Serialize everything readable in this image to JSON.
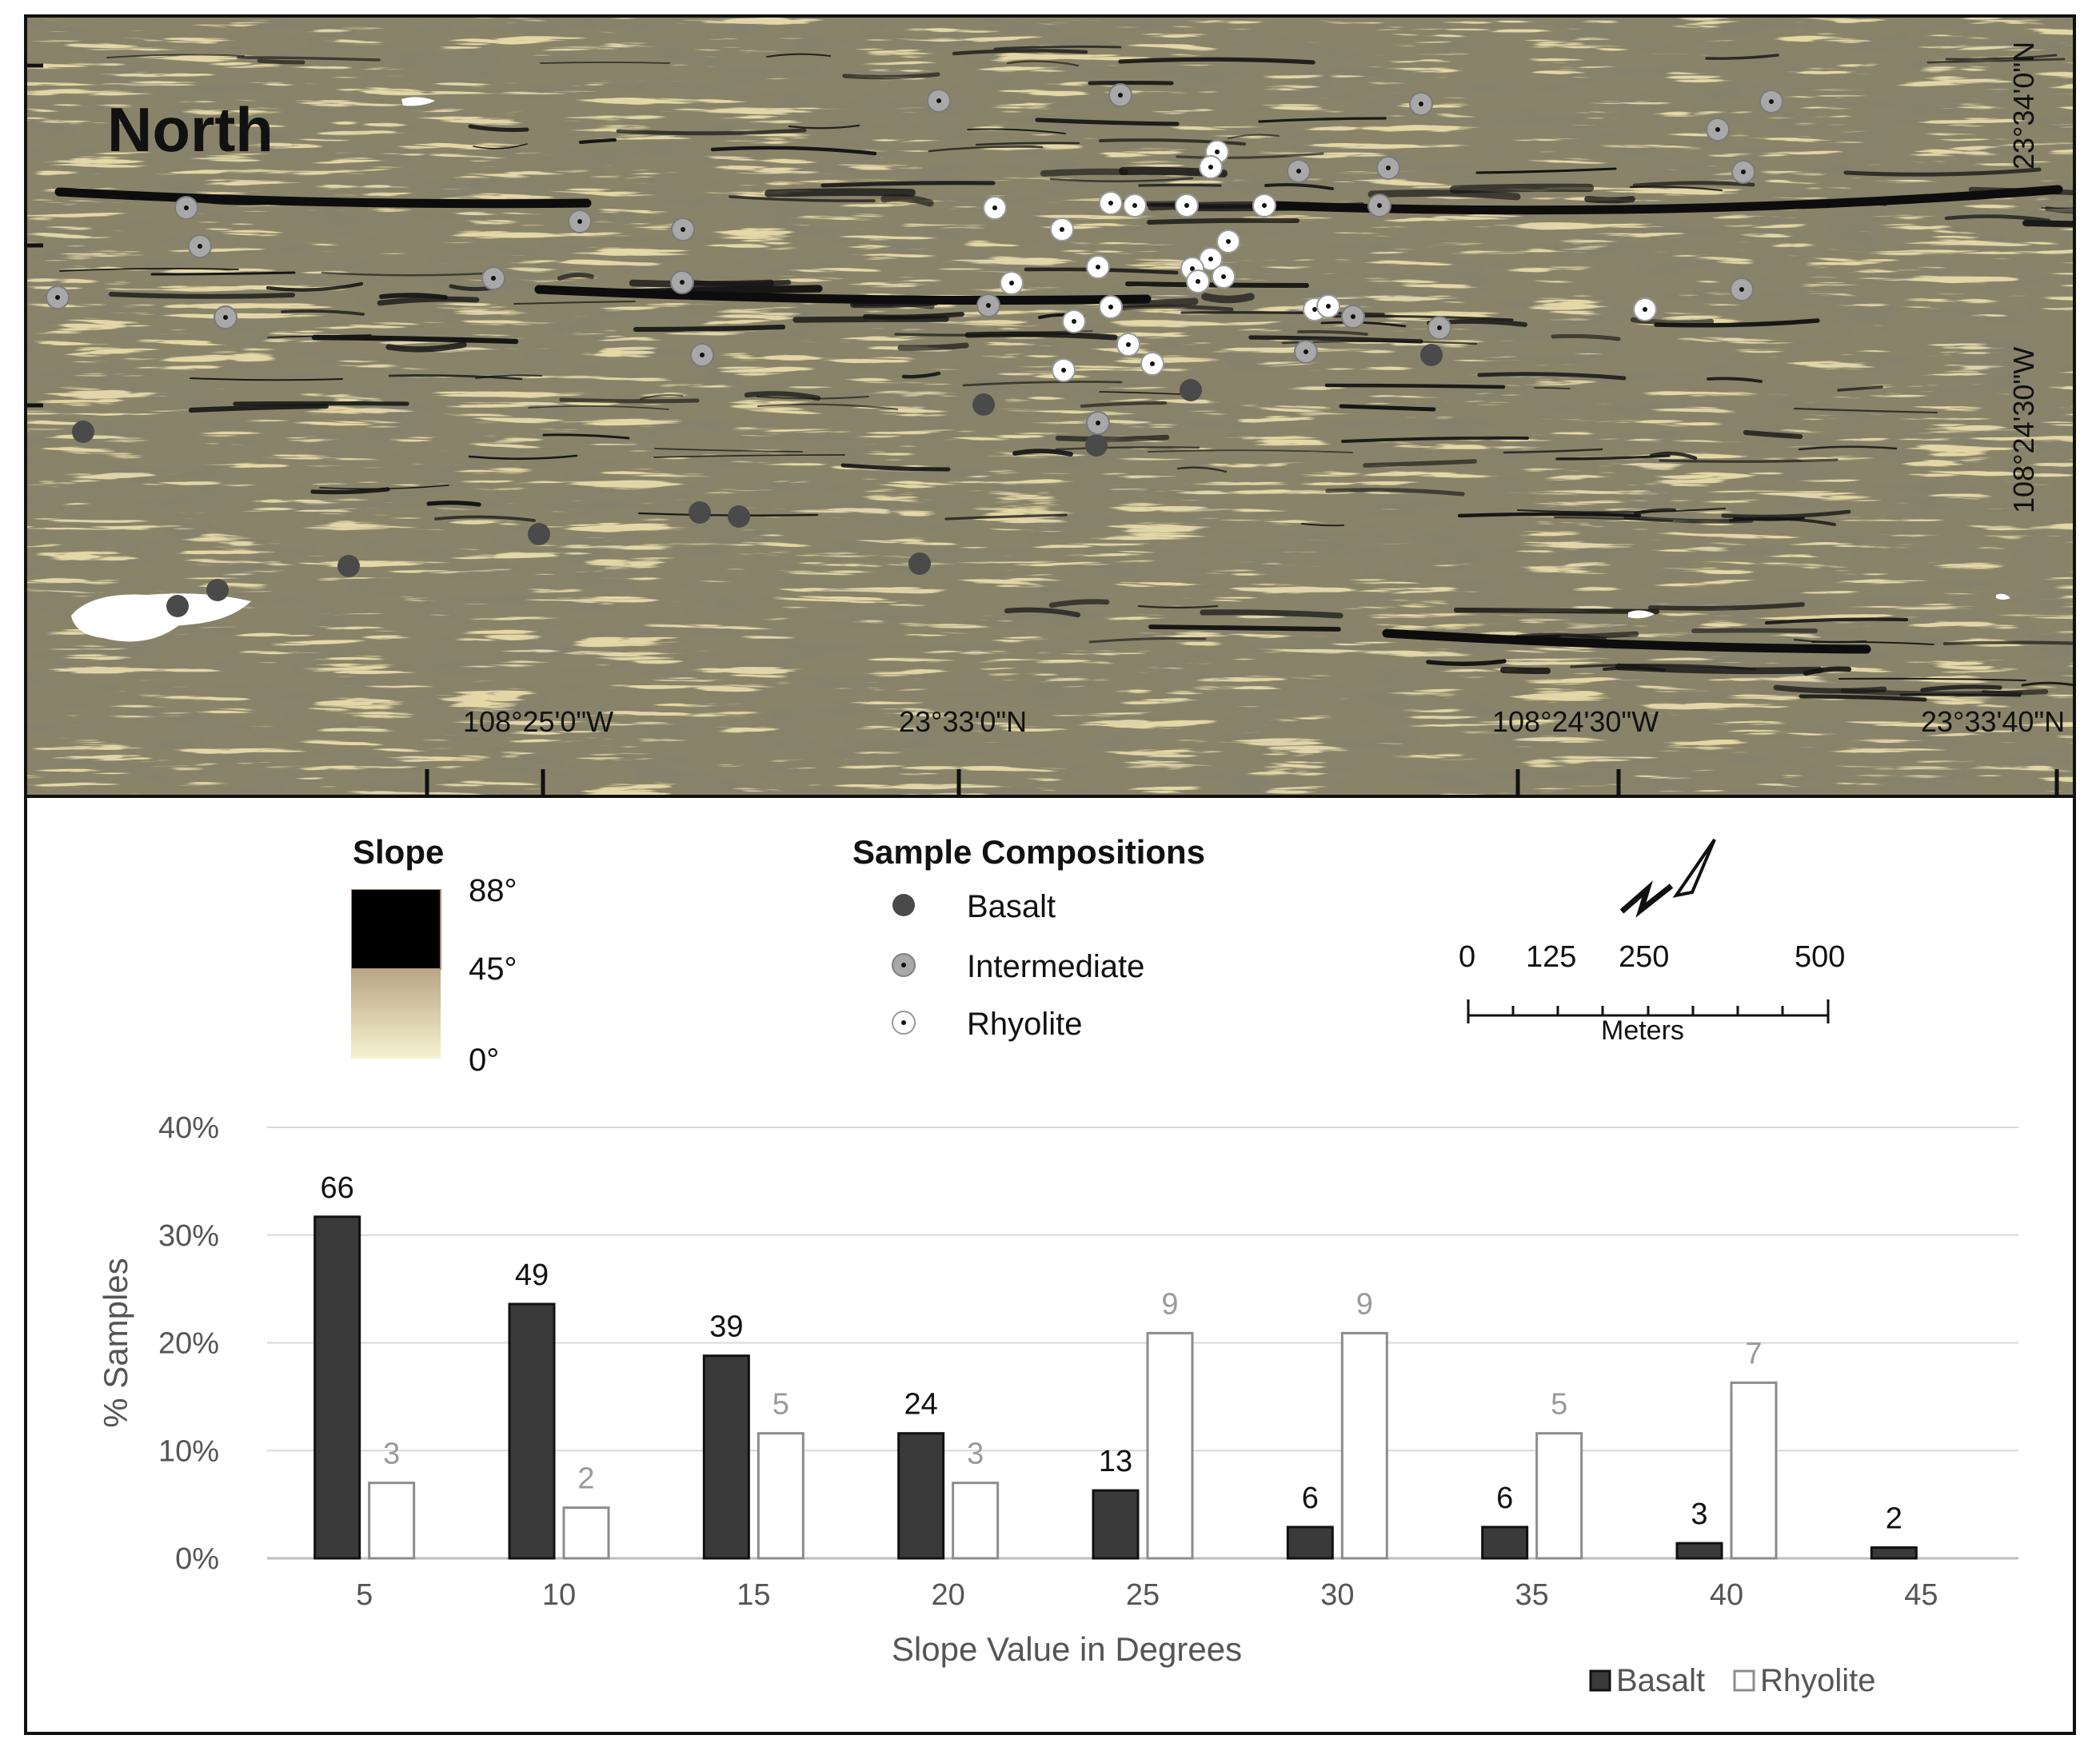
{
  "map": {
    "title": "North",
    "coords": {
      "bottom_lon_1": "108°25'0\"W",
      "bottom_lat_1": "23°33'0\"N",
      "bottom_lon_2": "108°24'30\"W",
      "bottom_lat_2": "23°33'40\"N",
      "right_lat": "23°34'0\"N",
      "right_lon": "108°24'30\"W"
    },
    "colors": {
      "terrain": "#e4d8a6",
      "steep": "#111111",
      "basalt": "#4a4a4a",
      "intermediate": "#a8a8a8",
      "rhyolite": "#ffffff"
    }
  },
  "slope_legend": {
    "title": "Slope",
    "max_label": "88°",
    "mid_label": "45°",
    "min_label": "0°"
  },
  "composition_legend": {
    "title": "Sample Compositions",
    "items": [
      {
        "label": "Basalt",
        "color": "#4a4a4a"
      },
      {
        "label": "Intermediate",
        "color": "#a8a8a8"
      },
      {
        "label": "Rhyolite",
        "color": "#ffffff"
      }
    ]
  },
  "scale_bar": {
    "labels": [
      "0",
      "125",
      "250",
      "500"
    ],
    "unit": "Meters",
    "icon": "north-arrow-icon"
  },
  "chart_data": {
    "type": "bar",
    "categories": [
      "5",
      "10",
      "15",
      "20",
      "25",
      "30",
      "35",
      "40",
      "45"
    ],
    "series": [
      {
        "name": "Basalt",
        "color": "#3a3a3a",
        "values": [
          31.7,
          23.6,
          18.8,
          11.6,
          6.3,
          2.9,
          2.9,
          1.4,
          1.0
        ],
        "labels": [
          "66",
          "49",
          "39",
          "24",
          "13",
          "6",
          "6",
          "3",
          "2"
        ]
      },
      {
        "name": "Rhyolite",
        "color": "#ffffff",
        "values": [
          7.0,
          4.7,
          11.6,
          7.0,
          20.9,
          20.9,
          11.6,
          16.3,
          null
        ],
        "labels": [
          "3",
          "2",
          "5",
          "3",
          "9",
          "9",
          "5",
          "7",
          ""
        ]
      }
    ],
    "xlabel": "Slope Value in Degrees",
    "ylabel": "% Samples",
    "yticks": [
      "0%",
      "10%",
      "20%",
      "30%",
      "40%"
    ],
    "ylim": [
      0,
      40
    ],
    "grid": true,
    "legend_position": "bottom-right"
  }
}
